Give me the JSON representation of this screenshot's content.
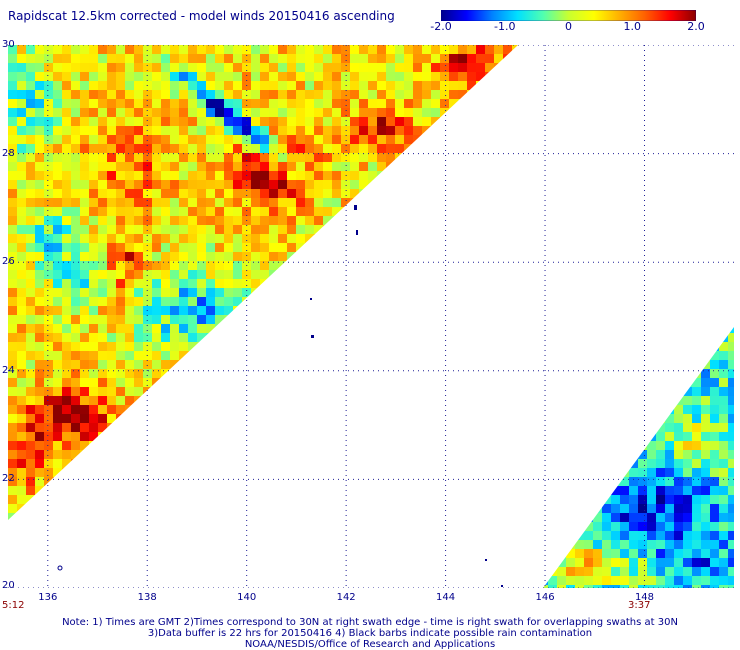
{
  "title": "Rapidscat 12.5km corrected - model winds 20150416 ascending",
  "colorbar": {
    "ticks": [
      {
        "label": "-2.0",
        "value": -2.0
      },
      {
        "label": "-1.0",
        "value": -1.0
      },
      {
        "label": "0",
        "value": 0
      },
      {
        "label": "1.0",
        "value": 1.0
      },
      {
        "label": "2.0",
        "value": 2.0
      }
    ],
    "range": [
      -2.0,
      2.0
    ],
    "colors": [
      "#00008b",
      "#0000ff",
      "#0080ff",
      "#00e0ff",
      "#50ffb0",
      "#c8ff30",
      "#ffff00",
      "#ffb000",
      "#ff6000",
      "#ff0000",
      "#8b0000"
    ]
  },
  "map": {
    "lon_range": [
      135.2,
      149.8
    ],
    "lat_range": [
      20,
      30
    ],
    "lat_labels": [
      {
        "label": "30",
        "value": 30
      },
      {
        "label": "28",
        "value": 28
      },
      {
        "label": "26",
        "value": 26
      },
      {
        "label": "24",
        "value": 24
      },
      {
        "label": "22",
        "value": 22
      },
      {
        "label": "20",
        "value": 20
      }
    ],
    "lon_labels": [
      {
        "label": "136",
        "value": 136
      },
      {
        "label": "138",
        "value": 138
      },
      {
        "label": "140",
        "value": 140
      },
      {
        "label": "142",
        "value": 142
      },
      {
        "label": "144",
        "value": 144
      },
      {
        "label": "146",
        "value": 146
      },
      {
        "label": "148",
        "value": 148
      }
    ],
    "gridlines": true,
    "gridline_color": "#1e1e96",
    "land_color": "#00008b"
  },
  "times": {
    "left": "5:12",
    "right": "3:37"
  },
  "notes": [
    "Note: 1) Times are GMT 2)Times correspond to 30N at right swath edge - time is right swath for overlapping swaths at 30N",
    "3)Data buffer is 22 hrs for 20150416 4) Black barbs indicate possible rain contamination",
    "NOAA/NESDIS/Office of Research and Applications"
  ]
}
